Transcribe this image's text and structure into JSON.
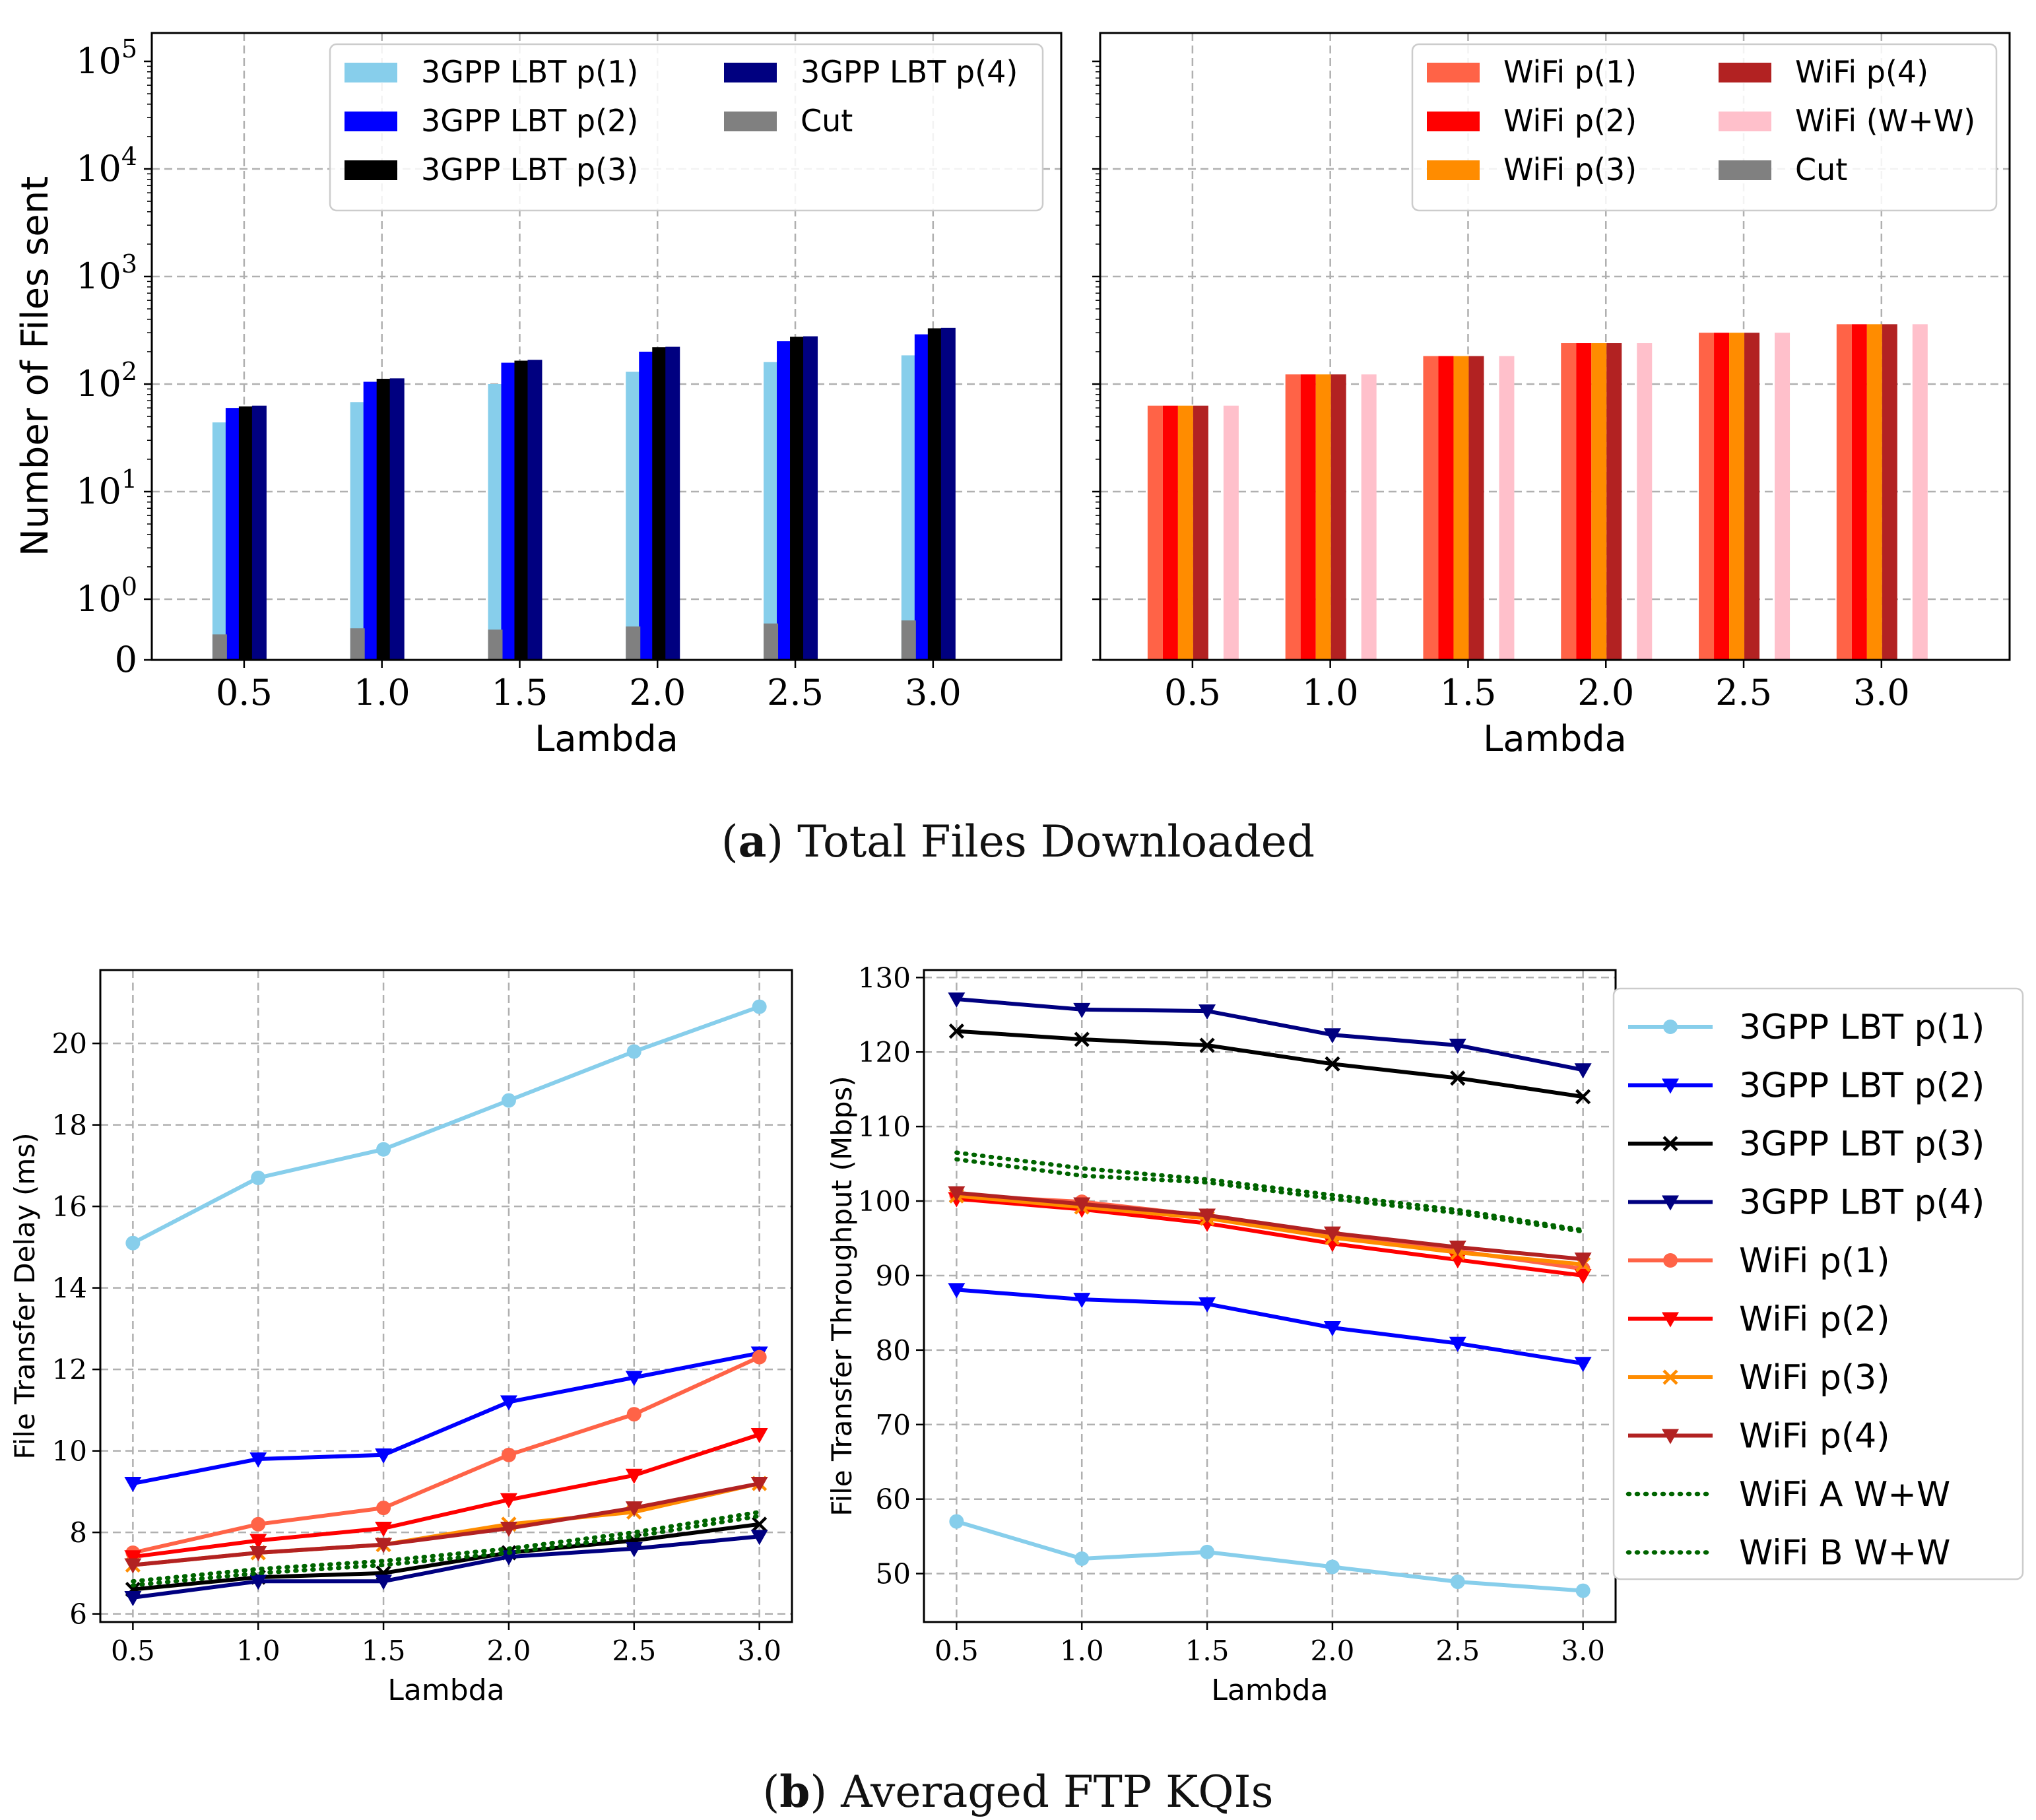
{
  "captions": {
    "a_letter": "a",
    "a_text": "Total Files Downloaded",
    "b_letter": "b",
    "b_text": "Averaged FTP KQIs"
  },
  "colors": {
    "lbt_p1": "#87ceeb",
    "lbt_p2": "#0000ff",
    "lbt_p3": "#000000",
    "lbt_p4": "#000080",
    "cut": "#808080",
    "wifi_p1": "#ff6347",
    "wifi_p2": "#ff0000",
    "wifi_p3": "#ff8c00",
    "wifi_p4": "#b22222",
    "wifi_ww": "#ffc0cb",
    "wifi_ab": "#006400"
  },
  "chart_data": [
    {
      "id": "a_left",
      "type": "bar",
      "yscale": "symlog",
      "xlabel": "Lambda",
      "ylabel": "Number of Files sent",
      "categories": [
        "0.5",
        "1.0",
        "1.5",
        "2.0",
        "2.5",
        "3.0"
      ],
      "ytick_labels": [
        {
          "value": 0,
          "base": "0",
          "exp": ""
        },
        {
          "value": 1,
          "base": "10",
          "exp": "0"
        },
        {
          "value": 10,
          "base": "10",
          "exp": "1"
        },
        {
          "value": 100,
          "base": "10",
          "exp": "2"
        },
        {
          "value": 1000,
          "base": "10",
          "exp": "3"
        },
        {
          "value": 10000,
          "base": "10",
          "exp": "4"
        },
        {
          "value": 100000,
          "base": "10",
          "exp": "5"
        }
      ],
      "series": [
        {
          "name": "3GPP LBT p(1)",
          "color": "#87ceeb",
          "values": [
            44,
            68,
            100,
            130,
            160,
            185
          ]
        },
        {
          "name": "3GPP LBT p(2)",
          "color": "#0000ff",
          "values": [
            60,
            105,
            158,
            200,
            250,
            290
          ]
        },
        {
          "name": "3GPP LBT p(3)",
          "color": "#000000",
          "values": [
            62,
            112,
            165,
            220,
            275,
            330
          ]
        },
        {
          "name": "3GPP LBT p(4)",
          "color": "#000080",
          "values": [
            63,
            113,
            168,
            222,
            278,
            333
          ]
        }
      ],
      "cut": {
        "name": "Cut",
        "color": "#808080",
        "values": [
          0.42,
          0.52,
          0.5,
          0.55,
          0.6,
          0.65
        ]
      },
      "legend_order": [
        "3GPP LBT p(1)",
        "3GPP LBT p(2)",
        "3GPP LBT p(3)",
        "3GPP LBT p(4)",
        "Cut"
      ],
      "legend": "upper-center, 2 columns"
    },
    {
      "id": "a_right",
      "type": "bar",
      "yscale": "symlog",
      "xlabel": "Lambda",
      "ylabel": "",
      "categories": [
        "0.5",
        "1.0",
        "1.5",
        "2.0",
        "2.5",
        "3.0"
      ],
      "series": [
        {
          "name": "WiFi p(1)",
          "color": "#ff6347",
          "values": [
            63,
            123,
            182,
            240,
            300,
            360
          ]
        },
        {
          "name": "WiFi p(2)",
          "color": "#ff0000",
          "values": [
            63,
            123,
            182,
            240,
            300,
            360
          ]
        },
        {
          "name": "WiFi p(3)",
          "color": "#ff8c00",
          "values": [
            63,
            123,
            182,
            240,
            300,
            360
          ]
        },
        {
          "name": "WiFi p(4)",
          "color": "#b22222",
          "values": [
            63,
            123,
            182,
            240,
            300,
            360
          ]
        },
        {
          "name": "WiFi (W+W)",
          "color": "#ffc0cb",
          "values": [
            63,
            123,
            182,
            240,
            300,
            360
          ]
        }
      ],
      "cut": {
        "name": "Cut",
        "color": "#808080",
        "values": [
          0,
          0,
          0,
          0,
          0,
          0
        ]
      },
      "legend_order": [
        "WiFi p(1)",
        "WiFi p(2)",
        "WiFi p(3)",
        "WiFi p(4)",
        "WiFi (W+W)",
        "Cut"
      ],
      "legend": "upper-right, 2 columns"
    },
    {
      "id": "b_left",
      "type": "line",
      "xlabel": "Lambda",
      "ylabel": "File Transfer Delay (ms)",
      "x": [
        0.5,
        1.0,
        1.5,
        2.0,
        2.5,
        3.0
      ],
      "xlim": [
        0.37,
        3.13
      ],
      "ylim": [
        5.8,
        21.8
      ],
      "xticks": [
        "0.5",
        "1.0",
        "1.5",
        "2.0",
        "2.5",
        "3.0"
      ],
      "yticks": [
        "6",
        "8",
        "10",
        "12",
        "14",
        "16",
        "18",
        "20"
      ],
      "series": [
        {
          "name": "3GPP LBT p(1)",
          "color": "#87ceeb",
          "marker": "circle",
          "style": "solid",
          "values": [
            15.1,
            16.7,
            17.4,
            18.6,
            19.8,
            20.9
          ]
        },
        {
          "name": "3GPP LBT p(2)",
          "color": "#0000ff",
          "marker": "tri_down",
          "style": "solid",
          "values": [
            9.2,
            9.8,
            9.9,
            11.2,
            11.8,
            12.4
          ]
        },
        {
          "name": "3GPP LBT p(3)",
          "color": "#000000",
          "marker": "x",
          "style": "solid",
          "values": [
            6.6,
            6.9,
            7.0,
            7.5,
            7.8,
            8.2
          ]
        },
        {
          "name": "3GPP LBT p(4)",
          "color": "#000080",
          "marker": "tri_down",
          "style": "solid",
          "values": [
            6.4,
            6.8,
            6.8,
            7.4,
            7.6,
            7.9
          ]
        },
        {
          "name": "WiFi p(1)",
          "color": "#ff6347",
          "marker": "circle",
          "style": "solid",
          "values": [
            7.5,
            8.2,
            8.6,
            9.9,
            10.9,
            12.3
          ]
        },
        {
          "name": "WiFi p(2)",
          "color": "#ff0000",
          "marker": "tri_down",
          "style": "solid",
          "values": [
            7.4,
            7.8,
            8.1,
            8.8,
            9.4,
            10.4
          ]
        },
        {
          "name": "WiFi p(3)",
          "color": "#ff8c00",
          "marker": "x",
          "style": "solid",
          "values": [
            7.2,
            7.5,
            7.7,
            8.2,
            8.5,
            9.2
          ]
        },
        {
          "name": "WiFi p(4)",
          "color": "#b22222",
          "marker": "tri_down",
          "style": "solid",
          "values": [
            7.2,
            7.5,
            7.7,
            8.1,
            8.6,
            9.2
          ]
        },
        {
          "name": "WiFi A W+W",
          "color": "#006400",
          "marker": "none",
          "style": "dotted",
          "values": [
            6.8,
            7.1,
            7.3,
            7.6,
            8.0,
            8.5
          ]
        },
        {
          "name": "WiFi B W+W",
          "color": "#006400",
          "marker": "none",
          "style": "dotted",
          "values": [
            6.7,
            7.0,
            7.2,
            7.5,
            7.9,
            8.4
          ]
        }
      ]
    },
    {
      "id": "b_right",
      "type": "line",
      "xlabel": "Lambda",
      "ylabel": "File Transfer Throughput (Mbps)",
      "x": [
        0.5,
        1.0,
        1.5,
        2.0,
        2.5,
        3.0
      ],
      "xlim": [
        0.37,
        3.13
      ],
      "ylim": [
        43.5,
        131
      ],
      "xticks": [
        "0.5",
        "1.0",
        "1.5",
        "2.0",
        "2.5",
        "3.0"
      ],
      "yticks": [
        "50",
        "60",
        "70",
        "80",
        "90",
        "100",
        "110",
        "120",
        "130"
      ],
      "series": [
        {
          "name": "3GPP LBT p(1)",
          "color": "#87ceeb",
          "marker": "circle",
          "style": "solid",
          "values": [
            57.0,
            52.0,
            52.9,
            50.9,
            48.9,
            47.7
          ]
        },
        {
          "name": "3GPP LBT p(2)",
          "color": "#0000ff",
          "marker": "tri_down",
          "style": "solid",
          "values": [
            88.1,
            86.8,
            86.2,
            83.0,
            80.9,
            78.2
          ]
        },
        {
          "name": "3GPP LBT p(3)",
          "color": "#000000",
          "marker": "x",
          "style": "solid",
          "values": [
            122.8,
            121.7,
            120.9,
            118.4,
            116.5,
            114.0
          ]
        },
        {
          "name": "3GPP LBT p(4)",
          "color": "#000080",
          "marker": "tri_down",
          "style": "solid",
          "values": [
            127.1,
            125.7,
            125.5,
            122.3,
            120.9,
            117.6
          ]
        },
        {
          "name": "WiFi p(1)",
          "color": "#ff6347",
          "marker": "circle",
          "style": "solid",
          "values": [
            100.8,
            99.9,
            98.0,
            95.4,
            93.3,
            90.9
          ]
        },
        {
          "name": "WiFi p(2)",
          "color": "#ff0000",
          "marker": "tri_down",
          "style": "solid",
          "values": [
            100.3,
            98.9,
            97.0,
            94.3,
            92.1,
            90.0
          ]
        },
        {
          "name": "WiFi p(3)",
          "color": "#ff8c00",
          "marker": "x",
          "style": "solid",
          "values": [
            100.7,
            99.2,
            97.7,
            95.1,
            93.1,
            91.5
          ]
        },
        {
          "name": "WiFi p(4)",
          "color": "#b22222",
          "marker": "tri_down",
          "style": "solid",
          "values": [
            101.1,
            99.6,
            98.1,
            95.7,
            93.8,
            92.2
          ]
        },
        {
          "name": "WiFi A W+W",
          "color": "#006400",
          "marker": "none",
          "style": "dotted",
          "values": [
            106.5,
            104.4,
            102.9,
            100.8,
            98.8,
            96.1
          ]
        },
        {
          "name": "WiFi B W+W",
          "color": "#006400",
          "marker": "none",
          "style": "dotted",
          "values": [
            105.6,
            103.4,
            102.5,
            100.3,
            98.4,
            95.9
          ]
        }
      ],
      "legend": "outside right"
    }
  ]
}
